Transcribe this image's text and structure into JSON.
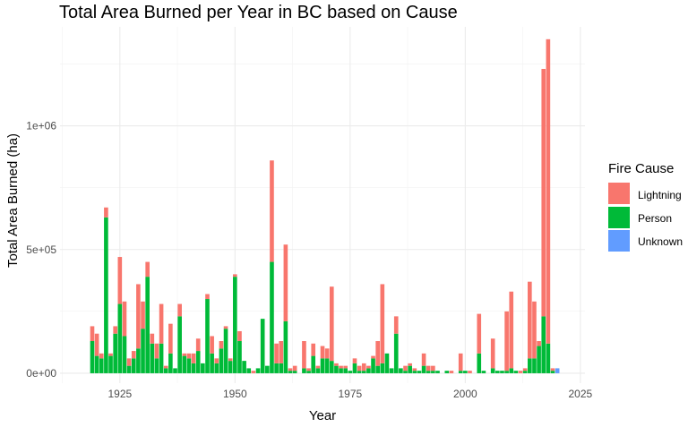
{
  "chart_data": {
    "type": "bar",
    "stacked": true,
    "title": "Total Area Burned per Year in BC based on Cause",
    "xlabel": "Year",
    "ylabel": "Total Area Burned (ha)",
    "xlim": [
      1912,
      2026
    ],
    "ylim": [
      -40000,
      1400000
    ],
    "x_ticks": [
      1925,
      1950,
      1975,
      2000,
      2025
    ],
    "y_ticks": [
      0,
      500000,
      1000000
    ],
    "y_tick_labels": [
      "0e+00",
      "5e+05",
      "1e+06"
    ],
    "grid": true,
    "legend_position": "right",
    "legend_title": "Fire Cause",
    "series": [
      {
        "name": "Lightning",
        "color": "#F8766D"
      },
      {
        "name": "Person",
        "color": "#00BA38"
      },
      {
        "name": "Unknown",
        "color": "#619CFF"
      }
    ],
    "years": [
      1919,
      1920,
      1921,
      1922,
      1923,
      1924,
      1925,
      1926,
      1927,
      1928,
      1929,
      1930,
      1931,
      1932,
      1933,
      1934,
      1935,
      1936,
      1937,
      1938,
      1939,
      1940,
      1941,
      1942,
      1943,
      1944,
      1945,
      1946,
      1947,
      1948,
      1949,
      1950,
      1951,
      1952,
      1953,
      1954,
      1955,
      1956,
      1957,
      1958,
      1959,
      1960,
      1961,
      1962,
      1963,
      1964,
      1965,
      1966,
      1967,
      1968,
      1969,
      1970,
      1971,
      1972,
      1973,
      1974,
      1975,
      1976,
      1977,
      1978,
      1979,
      1980,
      1981,
      1982,
      1983,
      1984,
      1985,
      1986,
      1987,
      1988,
      1989,
      1990,
      1991,
      1992,
      1993,
      1994,
      1995,
      1996,
      1997,
      1998,
      1999,
      2000,
      2001,
      2002,
      2003,
      2004,
      2005,
      2006,
      2007,
      2008,
      2009,
      2010,
      2011,
      2012,
      2013,
      2014,
      2015,
      2016,
      2017,
      2018,
      2019,
      2020
    ],
    "person": [
      130000,
      70000,
      60000,
      630000,
      70000,
      160000,
      280000,
      150000,
      30000,
      60000,
      100000,
      180000,
      390000,
      120000,
      60000,
      120000,
      20000,
      80000,
      20000,
      230000,
      70000,
      60000,
      40000,
      90000,
      40000,
      300000,
      80000,
      40000,
      100000,
      180000,
      50000,
      390000,
      130000,
      50000,
      20000,
      0,
      20000,
      220000,
      30000,
      450000,
      40000,
      40000,
      210000,
      10000,
      10000,
      0,
      20000,
      10000,
      70000,
      20000,
      60000,
      60000,
      50000,
      30000,
      20000,
      20000,
      10000,
      40000,
      10000,
      10000,
      20000,
      60000,
      30000,
      40000,
      80000,
      20000,
      160000,
      20000,
      10000,
      30000,
      10000,
      10000,
      30000,
      10000,
      10000,
      10000,
      0,
      10000,
      0,
      0,
      10000,
      10000,
      0,
      0,
      80000,
      10000,
      0,
      20000,
      10000,
      10000,
      10000,
      20000,
      10000,
      0,
      10000,
      60000,
      60000,
      110000,
      230000,
      120000,
      10000,
      0
    ],
    "lightning": [
      60000,
      90000,
      20000,
      40000,
      10000,
      30000,
      190000,
      140000,
      30000,
      30000,
      260000,
      110000,
      60000,
      40000,
      60000,
      160000,
      10000,
      120000,
      0,
      50000,
      10000,
      20000,
      40000,
      50000,
      0,
      20000,
      70000,
      20000,
      30000,
      10000,
      10000,
      10000,
      40000,
      0,
      0,
      10000,
      0,
      0,
      0,
      410000,
      80000,
      90000,
      310000,
      10000,
      20000,
      0,
      110000,
      10000,
      50000,
      10000,
      50000,
      40000,
      300000,
      10000,
      10000,
      10000,
      0,
      20000,
      20000,
      30000,
      10000,
      10000,
      100000,
      320000,
      0,
      0,
      70000,
      0,
      20000,
      10000,
      10000,
      0,
      50000,
      20000,
      20000,
      0,
      0,
      0,
      10000,
      0,
      70000,
      0,
      10000,
      0,
      160000,
      0,
      0,
      120000,
      0,
      0,
      240000,
      310000,
      0,
      10000,
      10000,
      310000,
      230000,
      20000,
      1000000,
      1230000,
      10000,
      0
    ],
    "unknown": [
      0,
      0,
      0,
      0,
      0,
      0,
      0,
      0,
      0,
      0,
      0,
      0,
      0,
      0,
      0,
      0,
      0,
      0,
      0,
      0,
      0,
      0,
      0,
      0,
      0,
      0,
      0,
      0,
      0,
      0,
      0,
      0,
      0,
      0,
      0,
      0,
      0,
      0,
      0,
      0,
      0,
      0,
      0,
      0,
      0,
      0,
      0,
      0,
      0,
      0,
      0,
      0,
      0,
      0,
      0,
      0,
      0,
      0,
      0,
      0,
      0,
      0,
      0,
      0,
      0,
      0,
      0,
      0,
      0,
      0,
      0,
      0,
      0,
      0,
      0,
      0,
      0,
      0,
      0,
      0,
      0,
      0,
      0,
      0,
      0,
      0,
      0,
      0,
      0,
      0,
      0,
      0,
      0,
      0,
      0,
      0,
      0,
      0,
      0,
      0,
      0,
      20000
    ]
  }
}
